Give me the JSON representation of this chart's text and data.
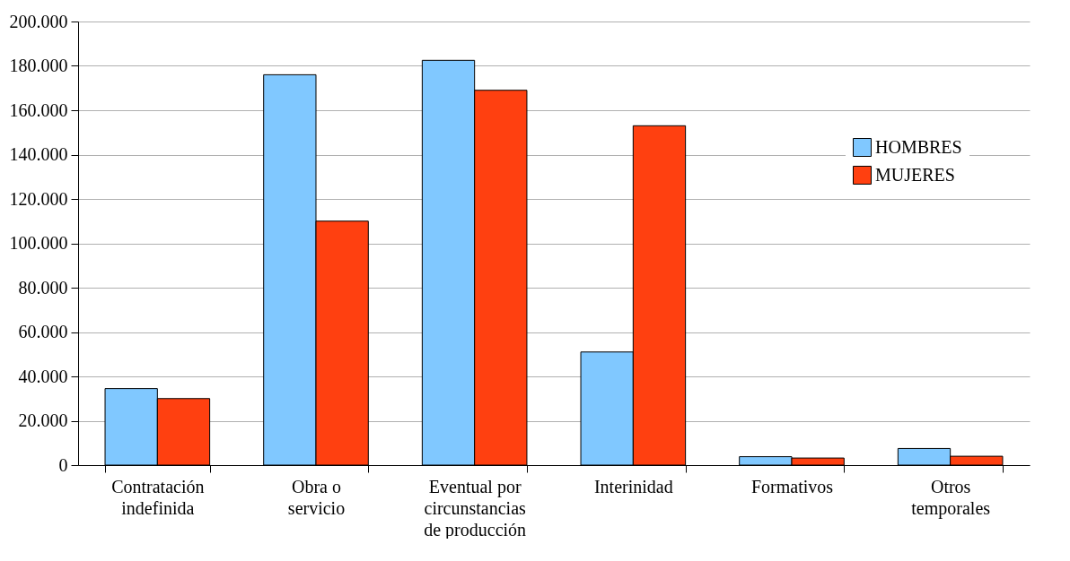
{
  "chart_data": {
    "type": "bar",
    "categories": [
      "Contratación indefinida",
      "Obra o servicio",
      "Eventual por circunstancias de producción",
      "Interinidad",
      "Formativos",
      "Otros temporales"
    ],
    "series": [
      {
        "name": "HOMBRES",
        "color": "#80c8ff",
        "values": [
          34500,
          176000,
          182500,
          51000,
          3800,
          7500
        ]
      },
      {
        "name": "MUJERES",
        "color": "#ff4010",
        "values": [
          30000,
          110000,
          169000,
          153000,
          3200,
          4000
        ]
      }
    ],
    "ylim": [
      0,
      200000
    ],
    "yticks": [
      {
        "value": 0,
        "label": "0"
      },
      {
        "value": 20000,
        "label": "20.000"
      },
      {
        "value": 40000,
        "label": "40.000"
      },
      {
        "value": 60000,
        "label": "60.000"
      },
      {
        "value": 80000,
        "label": "80.000"
      },
      {
        "value": 100000,
        "label": "100.000"
      },
      {
        "value": 120000,
        "label": "120.000"
      },
      {
        "value": 140000,
        "label": "140.000"
      },
      {
        "value": 160000,
        "label": "160.000"
      },
      {
        "value": 180000,
        "label": "180.000"
      },
      {
        "value": 200000,
        "label": "200.000"
      }
    ],
    "grid": "y",
    "legend": "top right"
  }
}
